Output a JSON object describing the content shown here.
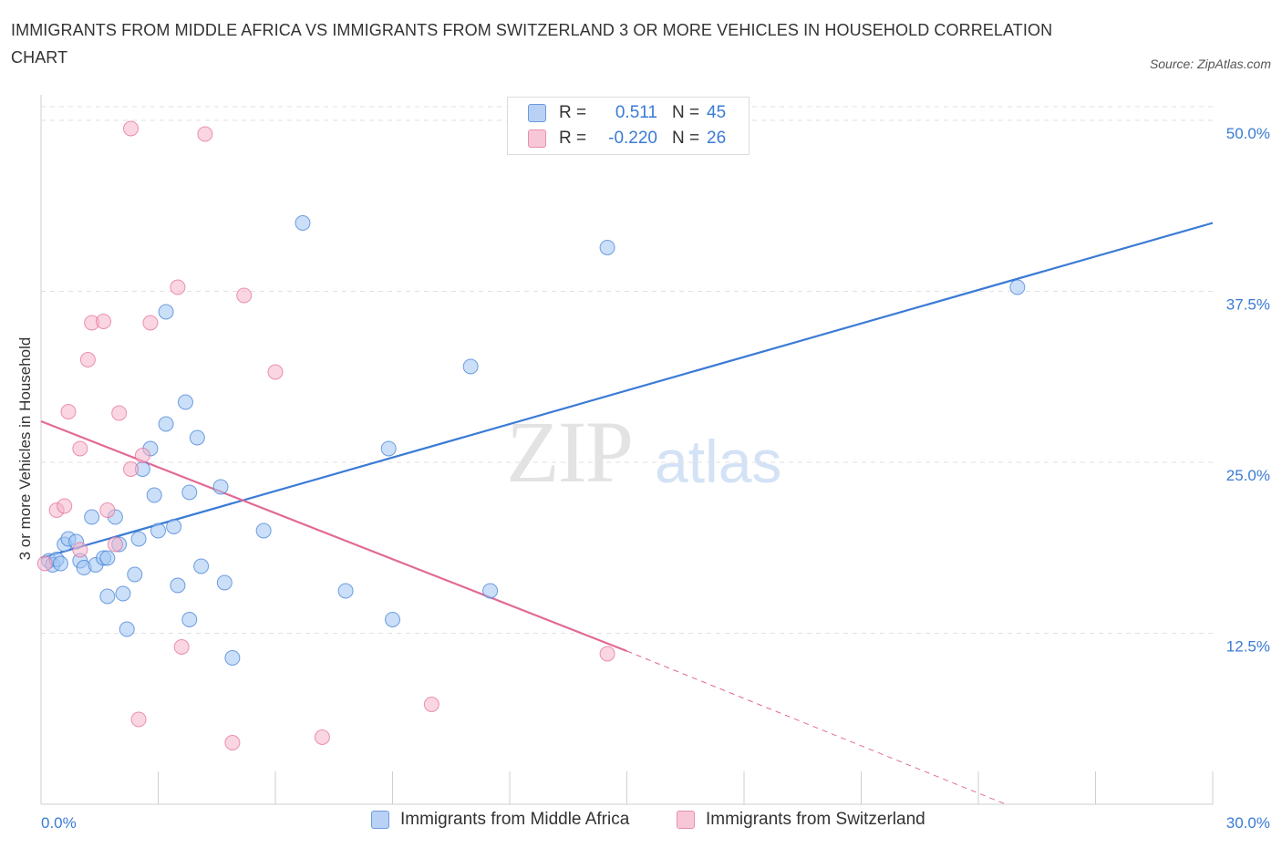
{
  "title": "IMMIGRANTS FROM MIDDLE AFRICA VS IMMIGRANTS FROM SWITZERLAND 3 OR MORE VEHICLES IN HOUSEHOLD CORRELATION CHART",
  "source": "Source: ZipAtlas.com",
  "watermark": {
    "zip": "ZIP",
    "atlas": "atlas"
  },
  "legend_top": {
    "rows": [
      {
        "r_label": "R =",
        "r_value": "0.511",
        "n_label": "N =",
        "n_value": "45"
      },
      {
        "r_label": "R =",
        "r_value": "-0.220",
        "n_label": "N =",
        "n_value": "26"
      }
    ]
  },
  "legend_bottom": {
    "series1": "Immigrants from Middle Africa",
    "series2": "Immigrants from Switzerland"
  },
  "chart_data": {
    "type": "scatter",
    "title": "IMMIGRANTS FROM MIDDLE AFRICA VS IMMIGRANTS FROM SWITZERLAND 3 OR MORE VEHICLES IN HOUSEHOLD CORRELATION CHART",
    "xlabel": "",
    "ylabel": "3 or more Vehicles in Household",
    "xlim": [
      0,
      30
    ],
    "ylim": [
      0,
      51
    ],
    "x_tick_labels": [
      "0.0%",
      "30.0%"
    ],
    "y_ticks": [
      12.5,
      25.0,
      37.5,
      50.0
    ],
    "y_tick_labels": [
      "12.5%",
      "25.0%",
      "37.5%",
      "50.0%"
    ],
    "grid": true,
    "legend_position": "bottom",
    "colors": {
      "series1": "#3a7bd5",
      "series2": "#e26a96"
    },
    "series": [
      {
        "name": "Immigrants from Middle Africa",
        "color": "#3a7bd5",
        "points": [
          [
            0.2,
            17.8
          ],
          [
            0.3,
            17.5
          ],
          [
            0.4,
            17.9
          ],
          [
            0.5,
            17.6
          ],
          [
            0.6,
            19.0
          ],
          [
            0.7,
            19.4
          ],
          [
            0.9,
            19.2
          ],
          [
            1.0,
            17.8
          ],
          [
            1.1,
            17.3
          ],
          [
            1.3,
            21.0
          ],
          [
            1.4,
            17.5
          ],
          [
            1.6,
            18.0
          ],
          [
            1.7,
            18.0
          ],
          [
            1.7,
            15.2
          ],
          [
            1.9,
            21.0
          ],
          [
            2.0,
            19.0
          ],
          [
            2.1,
            15.4
          ],
          [
            2.2,
            12.8
          ],
          [
            2.4,
            16.8
          ],
          [
            2.5,
            19.4
          ],
          [
            2.6,
            24.5
          ],
          [
            2.8,
            26.0
          ],
          [
            2.9,
            22.6
          ],
          [
            3.0,
            20.0
          ],
          [
            3.2,
            27.8
          ],
          [
            3.4,
            20.3
          ],
          [
            3.5,
            16.0
          ],
          [
            3.7,
            29.4
          ],
          [
            3.8,
            22.8
          ],
          [
            3.8,
            13.5
          ],
          [
            4.0,
            26.8
          ],
          [
            4.1,
            17.4
          ],
          [
            4.6,
            23.2
          ],
          [
            4.7,
            16.2
          ],
          [
            4.9,
            10.7
          ],
          [
            5.7,
            20.0
          ],
          [
            3.2,
            36.0
          ],
          [
            6.7,
            42.5
          ],
          [
            7.8,
            15.6
          ],
          [
            8.9,
            26.0
          ],
          [
            9.0,
            13.5
          ],
          [
            11.0,
            32.0
          ],
          [
            11.5,
            15.6
          ],
          [
            14.5,
            40.7
          ],
          [
            25.0,
            37.8
          ]
        ]
      },
      {
        "name": "Immigrants from Switzerland",
        "color": "#e26a96",
        "points": [
          [
            0.1,
            17.6
          ],
          [
            0.4,
            21.5
          ],
          [
            0.6,
            21.8
          ],
          [
            0.7,
            28.7
          ],
          [
            1.0,
            18.6
          ],
          [
            1.0,
            26.0
          ],
          [
            1.2,
            32.5
          ],
          [
            1.3,
            35.2
          ],
          [
            1.6,
            35.3
          ],
          [
            1.7,
            21.5
          ],
          [
            1.9,
            19.0
          ],
          [
            2.0,
            28.6
          ],
          [
            2.3,
            49.4
          ],
          [
            2.3,
            24.5
          ],
          [
            2.5,
            6.2
          ],
          [
            2.6,
            25.5
          ],
          [
            2.8,
            35.2
          ],
          [
            3.5,
            37.8
          ],
          [
            3.6,
            11.5
          ],
          [
            4.2,
            49.0
          ],
          [
            4.9,
            4.5
          ],
          [
            5.2,
            37.2
          ],
          [
            6.0,
            31.6
          ],
          [
            7.2,
            4.9
          ],
          [
            10.0,
            7.3
          ],
          [
            14.5,
            11.0
          ]
        ]
      }
    ],
    "trend_lines": [
      {
        "series": "Immigrants from Middle Africa",
        "x": [
          0,
          30
        ],
        "y": [
          18.0,
          42.5
        ],
        "style": "solid"
      },
      {
        "series": "Immigrants from Switzerland",
        "x": [
          0,
          15.0
        ],
        "y": [
          28.0,
          11.2
        ],
        "style": "solid"
      },
      {
        "series": "Immigrants from Switzerland",
        "x": [
          15.0,
          24.7
        ],
        "y": [
          11.2,
          0
        ],
        "style": "dashed"
      }
    ]
  }
}
